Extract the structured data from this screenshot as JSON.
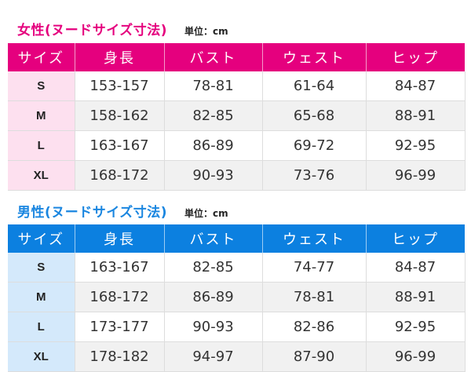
{
  "colors": {
    "women_accent": "#e5007e",
    "men_accent": "#0c80e0",
    "women_size_bg": "#fde0ef",
    "men_size_bg": "#d4e9fb"
  },
  "headers": [
    "サイズ",
    "身長",
    "バスト",
    "ウェスト",
    "ヒップ"
  ],
  "women": {
    "title": "女性(ヌードサイズ寸法)",
    "unit": "単位：cm",
    "rows": [
      [
        "S",
        "153-157",
        "78-81",
        "61-64",
        "84-87"
      ],
      [
        "M",
        "158-162",
        "82-85",
        "65-68",
        "88-91"
      ],
      [
        "L",
        "163-167",
        "86-89",
        "69-72",
        "92-95"
      ],
      [
        "XL",
        "168-172",
        "90-93",
        "73-76",
        "96-99"
      ]
    ]
  },
  "men": {
    "title": "男性(ヌードサイズ寸法)",
    "unit": "単位：cm",
    "rows": [
      [
        "S",
        "163-167",
        "82-85",
        "74-77",
        "84-87"
      ],
      [
        "M",
        "168-172",
        "86-89",
        "78-81",
        "88-91"
      ],
      [
        "L",
        "173-177",
        "90-93",
        "82-86",
        "92-95"
      ],
      [
        "XL",
        "178-182",
        "94-97",
        "87-90",
        "96-99"
      ]
    ]
  }
}
